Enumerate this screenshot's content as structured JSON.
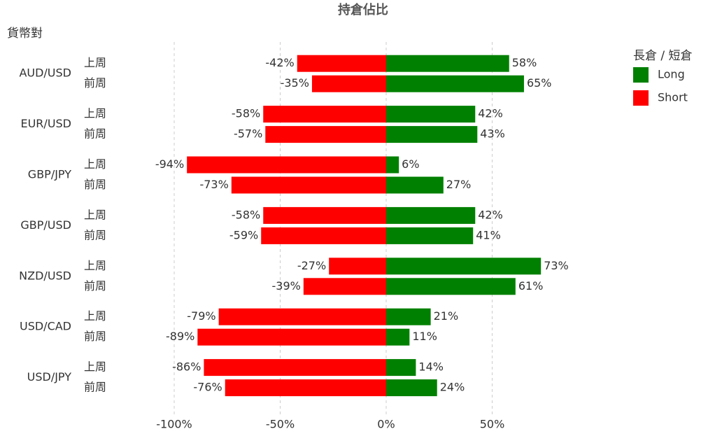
{
  "chart_data": {
    "type": "bar",
    "orientation": "horizontal",
    "title": "持倉佔比",
    "y_label": "貨幣對",
    "legend_title": "長倉 / 短倉",
    "legend_position": "right",
    "categories": [
      "AUD/USD",
      "EUR/USD",
      "GBP/JPY",
      "GBP/USD",
      "NZD/USD",
      "USD/CAD",
      "USD/JPY"
    ],
    "periods": [
      "上周",
      "前周"
    ],
    "series": [
      {
        "name": "Long",
        "color": "#008000",
        "values": [
          [
            58,
            65
          ],
          [
            42,
            43
          ],
          [
            6,
            27
          ],
          [
            42,
            41
          ],
          [
            73,
            61
          ],
          [
            21,
            11
          ],
          [
            14,
            24
          ]
        ],
        "value_labels": [
          [
            "58%",
            "65%"
          ],
          [
            "42%",
            "43%"
          ],
          [
            "6%",
            "27%"
          ],
          [
            "42%",
            "41%"
          ],
          [
            "73%",
            "61%"
          ],
          [
            "21%",
            "11%"
          ],
          [
            "14%",
            "24%"
          ]
        ]
      },
      {
        "name": "Short",
        "color": "#ff0000",
        "values": [
          [
            -42,
            -35
          ],
          [
            -58,
            -57
          ],
          [
            -94,
            -73
          ],
          [
            -58,
            -59
          ],
          [
            -27,
            -39
          ],
          [
            -79,
            -89
          ],
          [
            -86,
            -76
          ]
        ],
        "value_labels": [
          [
            "-42%",
            "-35%"
          ],
          [
            "-58%",
            "-57%"
          ],
          [
            "-94%",
            "-73%"
          ],
          [
            "-58%",
            "-59%"
          ],
          [
            "-27%",
            "-39%"
          ],
          [
            "-79%",
            "-89%"
          ],
          [
            "-86%",
            "-76%"
          ]
        ]
      }
    ],
    "xlim": [
      -100,
      80
    ],
    "xticks": [
      {
        "value": -100,
        "label": "-100%"
      },
      {
        "value": -50,
        "label": "-50%"
      },
      {
        "value": 0,
        "label": "0%"
      },
      {
        "value": 50,
        "label": "50%"
      }
    ],
    "grid": true
  }
}
